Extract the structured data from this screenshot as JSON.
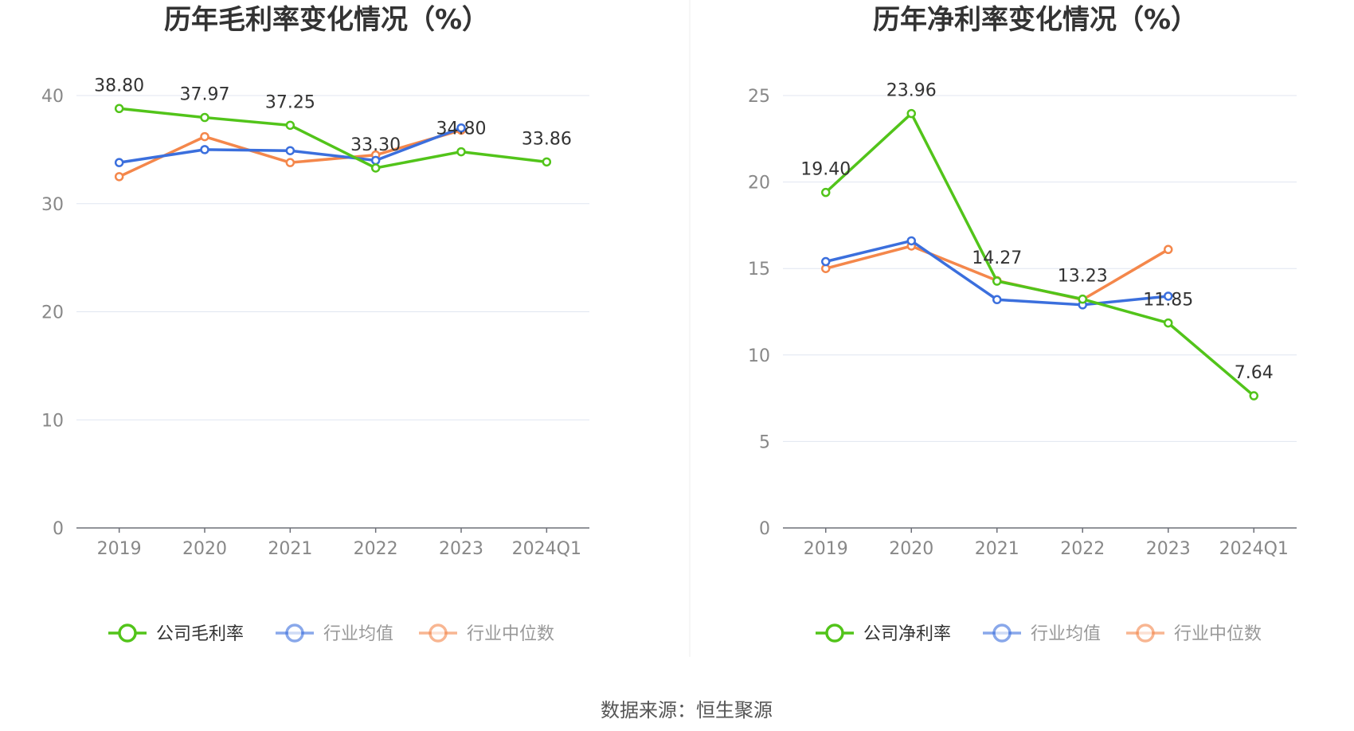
{
  "source_text": "数据来源：恒生聚源",
  "chart_data": [
    {
      "type": "line",
      "title": "历年毛利率变化情况（%）",
      "categories": [
        "2019",
        "2020",
        "2021",
        "2022",
        "2023",
        "2024Q1"
      ],
      "ylim": [
        0,
        40
      ],
      "yticks": [
        "0",
        "10",
        "20",
        "30",
        "40"
      ],
      "grid": true,
      "legend_position": "bottom",
      "series": [
        {
          "name": "公司毛利率",
          "color": "#52c41a",
          "values": [
            38.8,
            37.97,
            37.25,
            33.3,
            34.8,
            33.86
          ],
          "labels": [
            "38.80",
            "37.97",
            "37.25",
            "33.30",
            "34.80",
            "33.86"
          ]
        },
        {
          "name": "行业均值",
          "color": "#3b6fdd",
          "values": [
            33.8,
            35.0,
            34.9,
            34.0,
            37.0,
            null
          ]
        },
        {
          "name": "行业中位数",
          "color": "#f4874b",
          "values": [
            32.5,
            36.2,
            33.8,
            34.5,
            36.8,
            null
          ]
        }
      ]
    },
    {
      "type": "line",
      "title": "历年净利率变化情况（%）",
      "categories": [
        "2019",
        "2020",
        "2021",
        "2022",
        "2023",
        "2024Q1"
      ],
      "ylim": [
        0,
        25
      ],
      "yticks": [
        "0",
        "5",
        "10",
        "15",
        "20",
        "25"
      ],
      "grid": true,
      "legend_position": "bottom",
      "series": [
        {
          "name": "公司净利率",
          "color": "#52c41a",
          "values": [
            19.4,
            23.96,
            14.27,
            13.23,
            11.85,
            7.64
          ],
          "labels": [
            "19.40",
            "23.96",
            "14.27",
            "13.23",
            "11.85",
            "7.64"
          ]
        },
        {
          "name": "行业均值",
          "color": "#3b6fdd",
          "values": [
            15.4,
            16.6,
            13.2,
            12.9,
            13.4,
            null
          ]
        },
        {
          "name": "行业中位数",
          "color": "#f4874b",
          "values": [
            15.0,
            16.3,
            14.3,
            13.2,
            16.1,
            null
          ]
        }
      ]
    }
  ]
}
